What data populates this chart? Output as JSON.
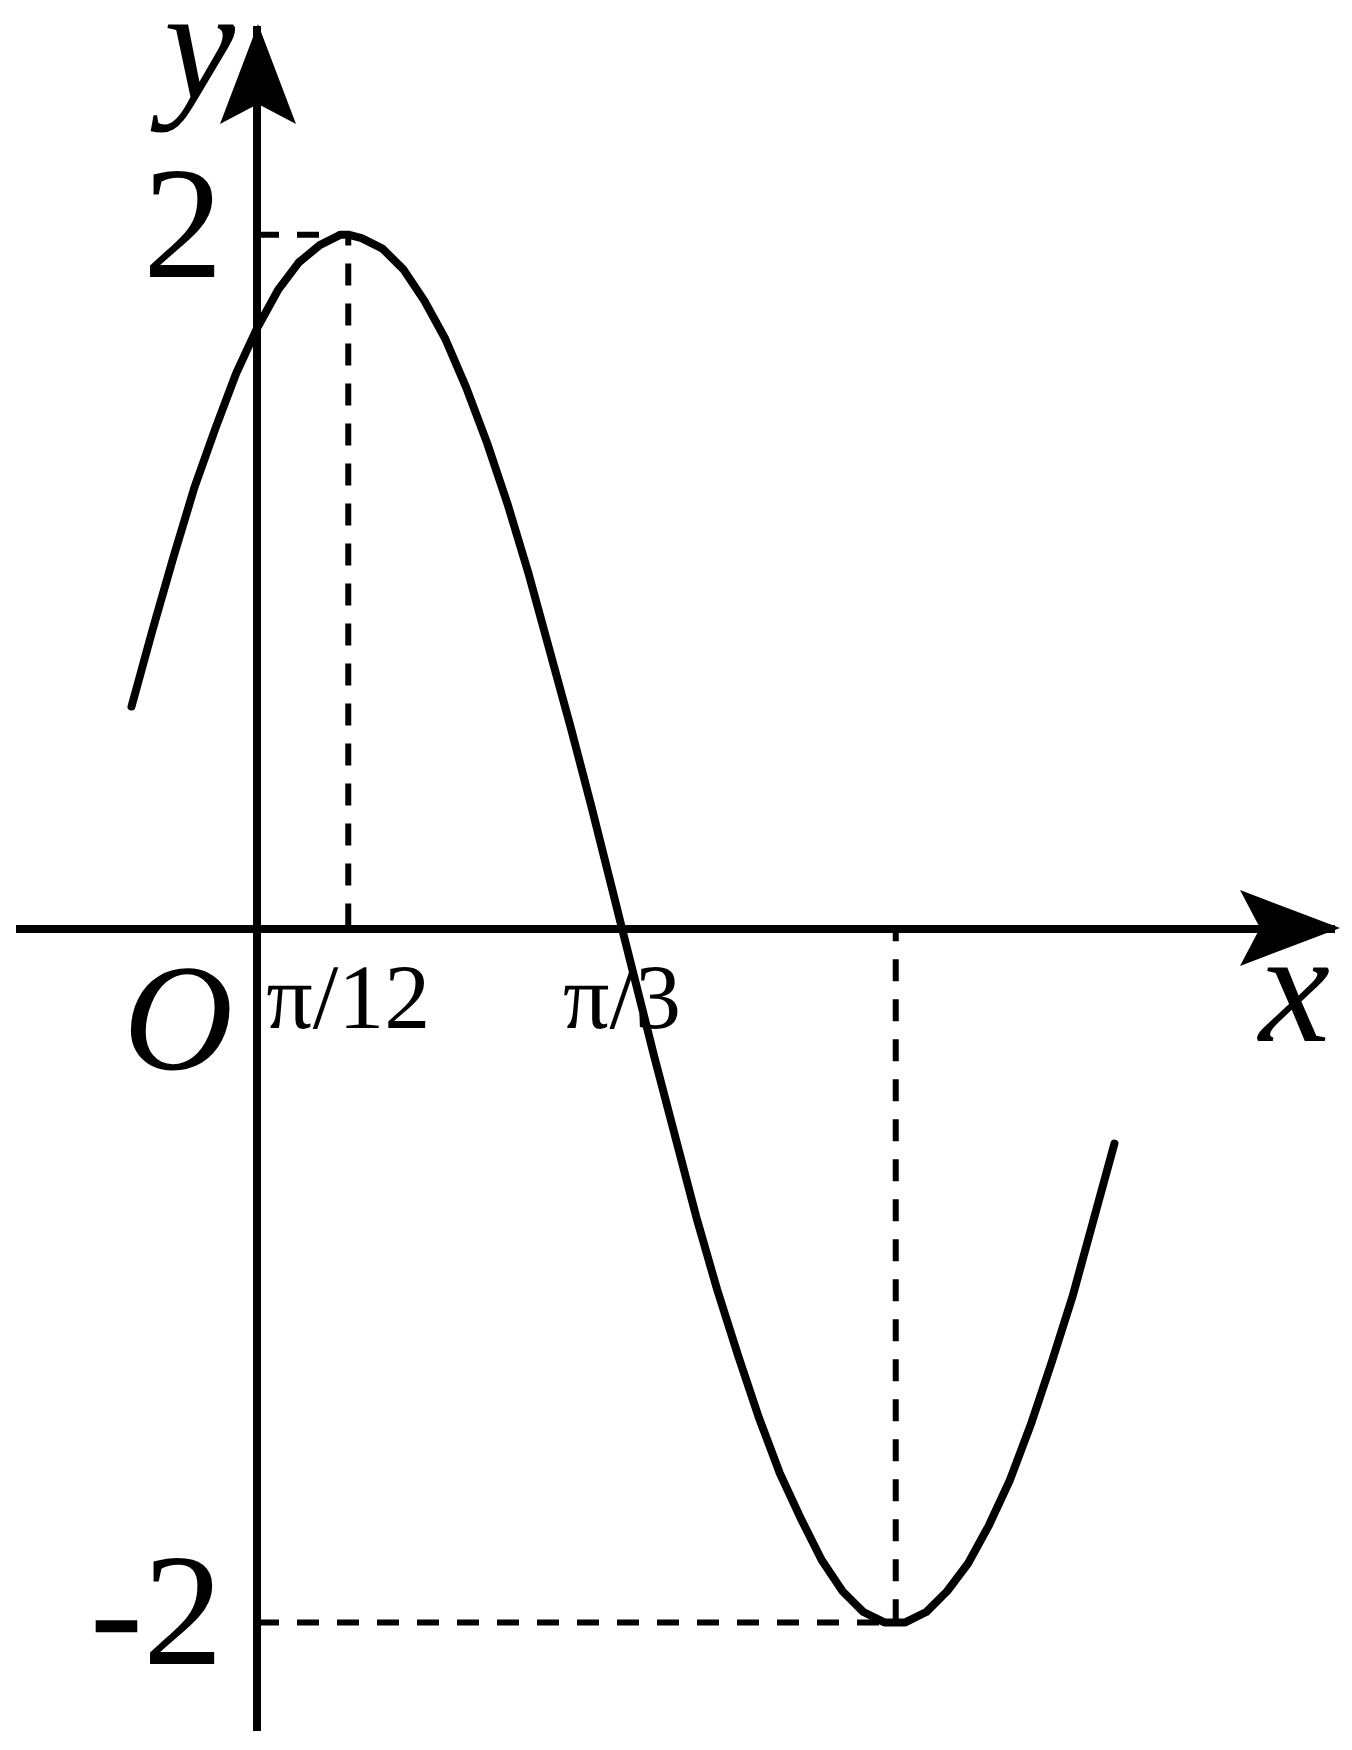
{
  "chart_data": {
    "type": "line",
    "xlabel": "x",
    "ylabel": "y",
    "annotations": [
      "O"
    ],
    "xlim": [
      -0.68,
      3.09
    ],
    "ylim": [
      -2.31,
      2.59
    ],
    "xticks": [
      {
        "value": 0.2618,
        "label": "π/12"
      },
      {
        "value": 1.0472,
        "label": "π/3"
      }
    ],
    "yticks": [
      -2,
      2
    ],
    "marker": "none",
    "series": [
      {
        "color": "#000000",
        "line_style": "solid",
        "x": [
          -0.36,
          -0.3,
          -0.24,
          -0.18,
          -0.12,
          -0.06,
          0,
          0.06,
          0.12,
          0.18,
          0.24,
          0.2618,
          0.3,
          0.36,
          0.42,
          0.48,
          0.54,
          0.6,
          0.66,
          0.72,
          0.78,
          0.84,
          0.9,
          0.96,
          1.02,
          1.0472,
          1.08,
          1.14,
          1.2,
          1.26,
          1.32,
          1.38,
          1.44,
          1.5,
          1.56,
          1.62,
          1.68,
          1.74,
          1.8,
          1.8326,
          1.86,
          1.92,
          1.98,
          2.04,
          2.1,
          2.16,
          2.22,
          2.28,
          2.34,
          2.4,
          2.46
        ],
        "values": [
          0.64,
          0.86,
          1.07,
          1.27,
          1.44,
          1.6,
          1.73,
          1.84,
          1.92,
          1.97,
          2,
          2,
          1.99,
          1.96,
          1.9,
          1.81,
          1.7,
          1.56,
          1.4,
          1.22,
          1.02,
          0.8,
          0.58,
          0.35,
          0.11,
          0,
          -0.13,
          -0.37,
          -0.6,
          -0.83,
          -1.04,
          -1.23,
          -1.41,
          -1.57,
          -1.7,
          -1.82,
          -1.91,
          -1.97,
          -2,
          -2,
          -2,
          -1.97,
          -1.91,
          -1.83,
          -1.72,
          -1.59,
          -1.43,
          -1.25,
          -1.06,
          -0.84,
          -0.62
        ]
      },
      {
        "color": "#000000",
        "line_style": "dashed",
        "x": [
          0,
          0.2618,
          0.2618
        ],
        "values": [
          2,
          2,
          0
        ]
      },
      {
        "color": "#000000",
        "line_style": "dashed",
        "x": [
          0,
          1.8326,
          1.8326
        ],
        "values": [
          -2,
          -2,
          0
        ]
      }
    ]
  }
}
